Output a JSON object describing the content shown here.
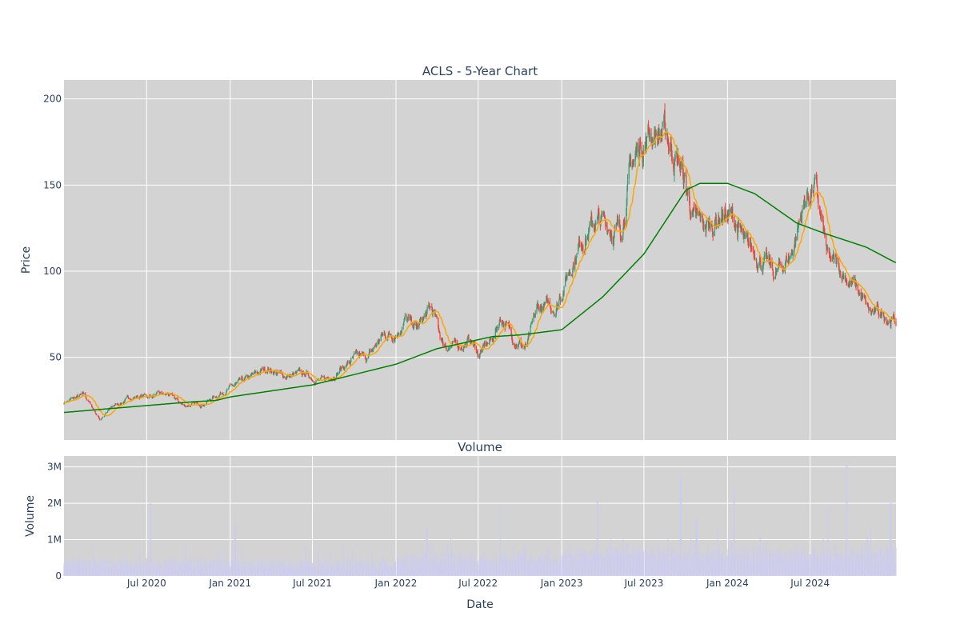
{
  "chart_data": {
    "type": "candlestick",
    "title": "ACLS - 5-Year Chart",
    "price_panel": {
      "ylabel": "Price",
      "ylim": [
        2,
        211
      ],
      "yticks": [
        50,
        100,
        150,
        200
      ],
      "ytick_labels": [
        "50",
        "100",
        "150",
        "200"
      ],
      "moving_averages": [
        "short-term (orange)",
        "long-term (green)"
      ],
      "colors": {
        "up": "#3d9970",
        "down": "#ef4136",
        "ma_short": "#ffa500",
        "ma_long": "#008000",
        "plot_bg": "#d3d3d3",
        "grid": "#ffffff"
      },
      "close_anchors": [
        [
          "2020-01-01",
          24
        ],
        [
          "2020-02-15",
          28
        ],
        [
          "2020-03-20",
          14
        ],
        [
          "2020-04-20",
          22
        ],
        [
          "2020-06-01",
          27
        ],
        [
          "2020-07-15",
          28
        ],
        [
          "2020-08-20",
          28
        ],
        [
          "2020-09-20",
          22
        ],
        [
          "2020-11-01",
          23
        ],
        [
          "2020-12-15",
          30
        ],
        [
          "2021-01-15",
          34
        ],
        [
          "2021-02-15",
          38
        ],
        [
          "2021-03-25",
          44
        ],
        [
          "2021-04-25",
          39
        ],
        [
          "2021-06-15",
          40
        ],
        [
          "2021-07-25",
          36
        ],
        [
          "2021-08-25",
          42
        ],
        [
          "2021-10-01",
          49
        ],
        [
          "2021-11-01",
          50
        ],
        [
          "2021-12-01",
          62
        ],
        [
          "2022-01-01",
          65
        ],
        [
          "2022-01-20",
          72
        ],
        [
          "2022-02-15",
          66
        ],
        [
          "2022-03-20",
          78
        ],
        [
          "2022-04-15",
          58
        ],
        [
          "2022-05-15",
          56
        ],
        [
          "2022-06-15",
          60
        ],
        [
          "2022-07-01",
          52
        ],
        [
          "2022-08-01",
          60
        ],
        [
          "2022-08-20",
          74
        ],
        [
          "2022-09-15",
          62
        ],
        [
          "2022-10-15",
          55
        ],
        [
          "2022-11-10",
          78
        ],
        [
          "2022-12-20",
          80
        ],
        [
          "2023-01-15",
          100
        ],
        [
          "2023-02-15",
          120
        ],
        [
          "2023-03-15",
          128
        ],
        [
          "2023-04-15",
          127
        ],
        [
          "2023-05-10",
          122
        ],
        [
          "2023-06-01",
          158
        ],
        [
          "2023-06-25",
          175
        ],
        [
          "2023-07-20",
          182
        ],
        [
          "2023-08-20",
          178
        ],
        [
          "2023-09-20",
          160
        ],
        [
          "2023-10-20",
          128
        ],
        [
          "2023-11-20",
          125
        ],
        [
          "2023-12-20",
          135
        ],
        [
          "2024-01-20",
          128
        ],
        [
          "2024-02-10",
          112
        ],
        [
          "2024-03-10",
          110
        ],
        [
          "2024-04-15",
          97
        ],
        [
          "2024-05-20",
          110
        ],
        [
          "2024-06-20",
          142
        ],
        [
          "2024-07-10",
          150
        ],
        [
          "2024-08-10",
          105
        ],
        [
          "2024-09-10",
          100
        ],
        [
          "2024-10-10",
          90
        ],
        [
          "2024-11-10",
          75
        ],
        [
          "2024-12-10",
          75
        ],
        [
          "2025-01-05",
          71
        ]
      ],
      "ma_long_anchors": [
        [
          "2020-01-01",
          18
        ],
        [
          "2020-07-01",
          22
        ],
        [
          "2020-10-01",
          24
        ],
        [
          "2020-12-01",
          25
        ],
        [
          "2021-01-01",
          27
        ],
        [
          "2021-07-01",
          34
        ],
        [
          "2022-01-01",
          46
        ],
        [
          "2022-04-01",
          55
        ],
        [
          "2022-08-01",
          62
        ],
        [
          "2022-10-01",
          63
        ],
        [
          "2023-01-01",
          66
        ],
        [
          "2023-04-01",
          85
        ],
        [
          "2023-07-01",
          110
        ],
        [
          "2023-10-01",
          147
        ],
        [
          "2023-11-01",
          151
        ],
        [
          "2024-01-01",
          151
        ],
        [
          "2024-03-01",
          145
        ],
        [
          "2024-06-01",
          128
        ],
        [
          "2024-08-01",
          122
        ],
        [
          "2024-11-01",
          114
        ],
        [
          "2025-01-05",
          105
        ]
      ]
    },
    "volume_panel": {
      "title": "Volume",
      "ylabel": "Volume",
      "ylim": [
        0,
        3300000
      ],
      "yticks": [
        0,
        1000000,
        2000000,
        3000000
      ],
      "ytick_labels": [
        "0",
        "1M",
        "2M",
        "3M"
      ],
      "bar_color": "#ccccee",
      "spikes": [
        [
          "2020-07-10",
          2000000
        ],
        [
          "2021-01-12",
          1400000
        ],
        [
          "2022-03-10",
          1300000
        ],
        [
          "2022-08-20",
          1900000
        ],
        [
          "2023-03-20",
          2050000
        ],
        [
          "2023-09-20",
          2800000
        ],
        [
          "2023-10-25",
          1600000
        ],
        [
          "2023-12-10",
          1400000
        ],
        [
          "2024-01-15",
          2450000
        ],
        [
          "2024-08-10",
          1900000
        ],
        [
          "2024-09-20",
          3100000
        ],
        [
          "2024-11-10",
          1350000
        ],
        [
          "2024-12-25",
          2000000
        ]
      ]
    },
    "xaxis": {
      "xlabel": "Date",
      "xlim": [
        "2020-01-01",
        "2025-01-06"
      ],
      "ticks": [
        "2020-07-01",
        "2021-01-01",
        "2021-07-01",
        "2022-01-01",
        "2022-07-01",
        "2023-01-01",
        "2023-07-01",
        "2024-01-01",
        "2024-07-01"
      ],
      "tick_labels": [
        "Jul 2020",
        "Jan 2021",
        "Jul 2021",
        "Jan 2022",
        "Jul 2022",
        "Jan 2023",
        "Jul 2023",
        "Jan 2024",
        "Jul 2024"
      ]
    },
    "grid": true
  }
}
